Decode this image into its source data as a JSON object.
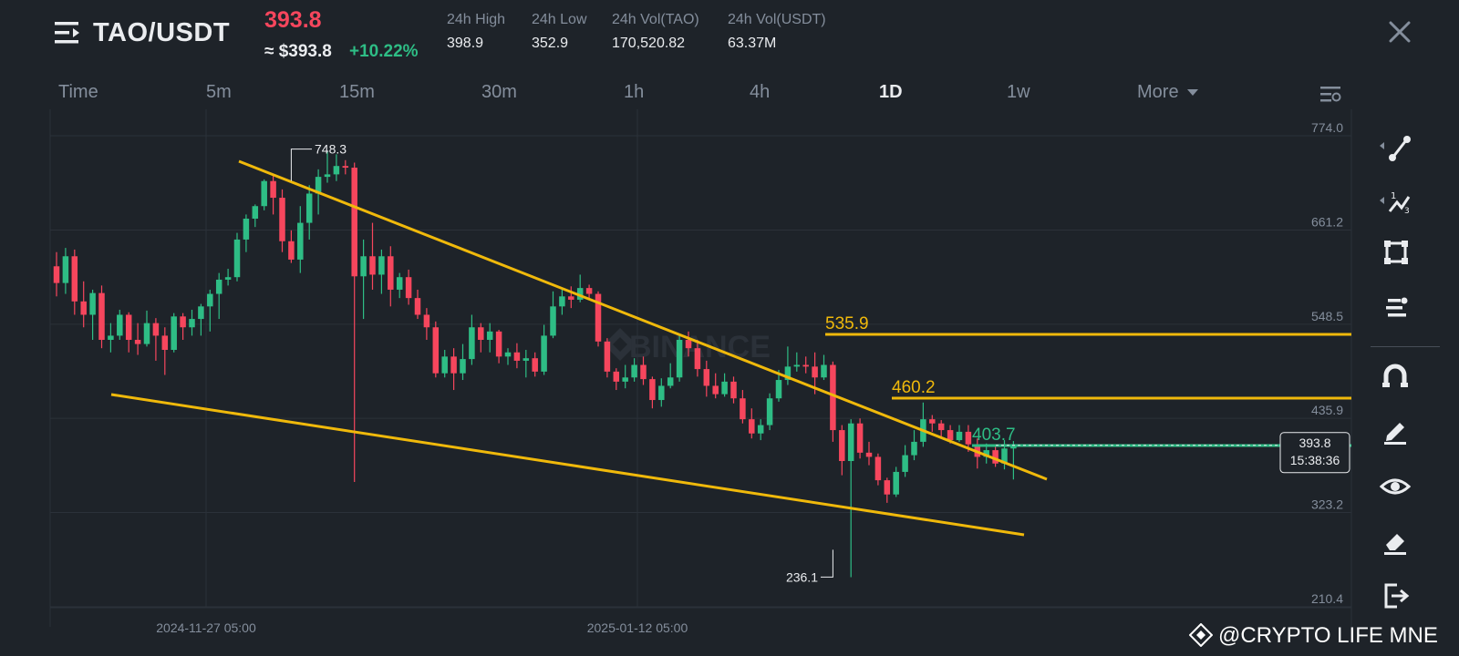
{
  "header": {
    "pair": "TAO/USDT",
    "last_price": "393.8",
    "usd_price": "≈ $393.8",
    "change_pct": "+10.22%",
    "stats": [
      {
        "label": "24h High",
        "value": "398.9"
      },
      {
        "label": "24h Low",
        "value": "352.9"
      },
      {
        "label": "24h Vol(TAO)",
        "value": "170,520.82"
      },
      {
        "label": "24h Vol(USDT)",
        "value": "63.37M"
      }
    ]
  },
  "timeframes": {
    "items": [
      "Time",
      "5m",
      "15m",
      "30m",
      "1h",
      "4h",
      "1D",
      "1w",
      "More"
    ],
    "active": "1D"
  },
  "chart_data": {
    "type": "candlestick",
    "y_ticks": [
      "774.0",
      "661.2",
      "548.5",
      "435.9",
      "323.2",
      "210.4"
    ],
    "x_ticks": [
      "2024-11-27 05:00",
      "2025-01-12 05:00"
    ],
    "watermark": "BINANCE",
    "high_label": "748.3",
    "low_label": "236.1",
    "levels": [
      {
        "label": "535.9",
        "color": "#f0b90b"
      },
      {
        "label": "460.2",
        "color": "#f0b90b"
      },
      {
        "label": "403.7",
        "color": "#2ebd85"
      }
    ],
    "current_price": "393.8",
    "countdown": "15:38:36",
    "up_color": "#2ebd85",
    "down_color": "#f6465d",
    "candles": [
      [
        608,
        588,
        625,
        572
      ],
      [
        588,
        620,
        630,
        575
      ],
      [
        620,
        566,
        628,
        550
      ],
      [
        566,
        550,
        590,
        535
      ],
      [
        550,
        576,
        580,
        520
      ],
      [
        576,
        520,
        585,
        510
      ],
      [
        520,
        525,
        540,
        505
      ],
      [
        525,
        550,
        556,
        520
      ],
      [
        550,
        520,
        553,
        505
      ],
      [
        520,
        515,
        540,
        502
      ],
      [
        515,
        540,
        555,
        512
      ],
      [
        540,
        525,
        546,
        495
      ],
      [
        525,
        508,
        535,
        478
      ],
      [
        508,
        548,
        552,
        505
      ],
      [
        548,
        535,
        552,
        520
      ],
      [
        535,
        545,
        556,
        525
      ],
      [
        545,
        560,
        563,
        525
      ],
      [
        560,
        575,
        580,
        530
      ],
      [
        575,
        592,
        600,
        545
      ],
      [
        592,
        595,
        605,
        585
      ],
      [
        595,
        640,
        648,
        590
      ],
      [
        640,
        665,
        670,
        625
      ],
      [
        665,
        680,
        682,
        655
      ],
      [
        680,
        710,
        712,
        675
      ],
      [
        710,
        690,
        718,
        670
      ],
      [
        690,
        638,
        700,
        625
      ],
      [
        638,
        616,
        651,
        612
      ],
      [
        616,
        660,
        680,
        600
      ],
      [
        660,
        695,
        705,
        640
      ],
      [
        695,
        715,
        724,
        670
      ],
      [
        715,
        718,
        745,
        708
      ],
      [
        718,
        728,
        742,
        710
      ],
      [
        728,
        726,
        735,
        718
      ],
      [
        726,
        596,
        732,
        350
      ],
      [
        596,
        620,
        640,
        545
      ],
      [
        620,
        598,
        660,
        580
      ],
      [
        598,
        620,
        628,
        575
      ],
      [
        620,
        580,
        632,
        560
      ],
      [
        580,
        595,
        600,
        570
      ],
      [
        595,
        570,
        604,
        562
      ],
      [
        570,
        550,
        580,
        545
      ],
      [
        550,
        535,
        558,
        520
      ],
      [
        535,
        480,
        542,
        475
      ],
      [
        480,
        500,
        508,
        475
      ],
      [
        500,
        480,
        510,
        460
      ],
      [
        480,
        497,
        515,
        472
      ],
      [
        497,
        535,
        550,
        490
      ],
      [
        535,
        520,
        540,
        505
      ],
      [
        520,
        530,
        540,
        505
      ],
      [
        530,
        500,
        532,
        492
      ],
      [
        500,
        505,
        510,
        490
      ],
      [
        505,
        495,
        516,
        486
      ],
      [
        495,
        498,
        508,
        475
      ],
      [
        498,
        482,
        505,
        476
      ],
      [
        482,
        525,
        538,
        478
      ],
      [
        525,
        560,
        578,
        522
      ],
      [
        560,
        572,
        582,
        550
      ],
      [
        572,
        568,
        584,
        558
      ],
      [
        568,
        582,
        598,
        565
      ],
      [
        582,
        575,
        586,
        570
      ],
      [
        575,
        518,
        578,
        512
      ],
      [
        518,
        482,
        522,
        475
      ],
      [
        482,
        470,
        486,
        460
      ],
      [
        470,
        475,
        490,
        462
      ],
      [
        475,
        490,
        498,
        470
      ],
      [
        490,
        473,
        500,
        466
      ],
      [
        473,
        448,
        476,
        438
      ],
      [
        448,
        465,
        474,
        440
      ],
      [
        465,
        475,
        492,
        462
      ],
      [
        475,
        520,
        526,
        470
      ],
      [
        520,
        510,
        530,
        500
      ],
      [
        510,
        485,
        520,
        476
      ],
      [
        485,
        465,
        495,
        452
      ],
      [
        465,
        455,
        480,
        450
      ],
      [
        455,
        470,
        480,
        452
      ],
      [
        470,
        450,
        476,
        444
      ],
      [
        450,
        425,
        460,
        420
      ],
      [
        425,
        408,
        438,
        402
      ],
      [
        408,
        418,
        425,
        400
      ],
      [
        418,
        450,
        456,
        412
      ],
      [
        450,
        472,
        484,
        446
      ],
      [
        472,
        488,
        512,
        466
      ],
      [
        488,
        490,
        505,
        482
      ],
      [
        490,
        488,
        500,
        480
      ],
      [
        488,
        475,
        505,
        455
      ],
      [
        475,
        490,
        502,
        472
      ],
      [
        490,
        412,
        494,
        398
      ],
      [
        412,
        375,
        418,
        358
      ],
      [
        375,
        420,
        425,
        236
      ],
      [
        420,
        385,
        426,
        378
      ],
      [
        385,
        380,
        398,
        370
      ],
      [
        380,
        352,
        384,
        346
      ],
      [
        352,
        335,
        355,
        325
      ],
      [
        335,
        362,
        368,
        332
      ],
      [
        362,
        382,
        394,
        356
      ],
      [
        382,
        398,
        412,
        376
      ],
      [
        398,
        425,
        445,
        392
      ],
      [
        425,
        420,
        430,
        410
      ],
      [
        420,
        412,
        424,
        404
      ],
      [
        412,
        400,
        418,
        396
      ],
      [
        400,
        410,
        418,
        398
      ],
      [
        410,
        395,
        418,
        386
      ],
      [
        395,
        380,
        402,
        366
      ],
      [
        380,
        388,
        396,
        372
      ],
      [
        388,
        372,
        392,
        368
      ],
      [
        372,
        390,
        400,
        365
      ],
      [
        390,
        393.8,
        398.9,
        352.9
      ]
    ]
  },
  "toolbar": {
    "tools": [
      "trend-line-icon",
      "fib-tool-icon",
      "rectangle-icon",
      "brush-icon",
      "magnet-icon",
      "pencil-icon",
      "eye-icon",
      "eraser-icon",
      "exit-icon"
    ]
  },
  "watermark_text": "@CRYPTO LIFE MNE"
}
